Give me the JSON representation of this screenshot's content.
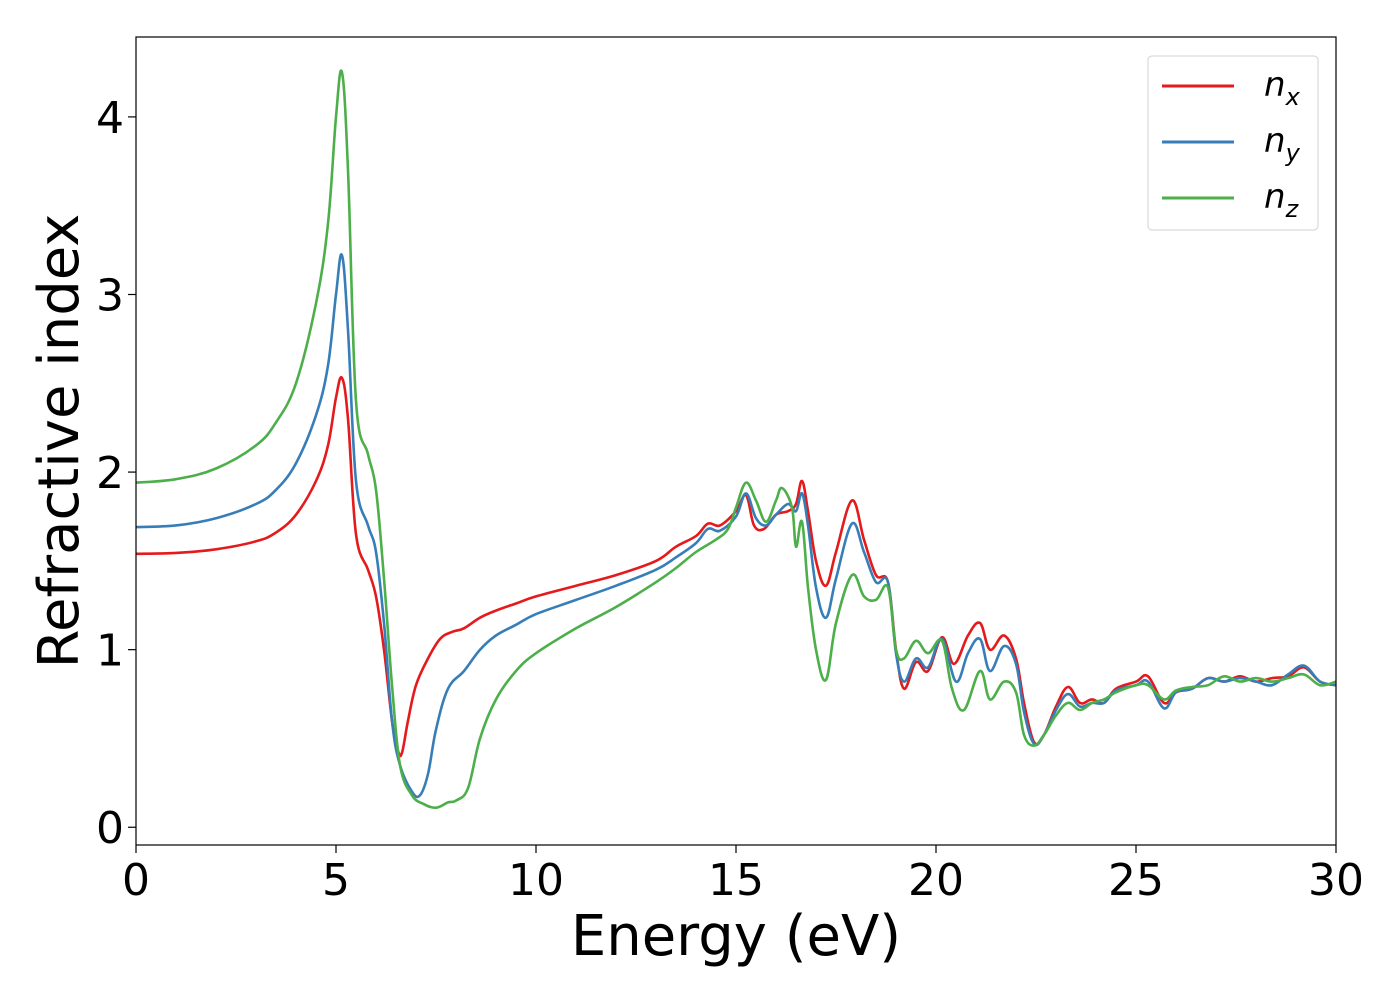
{
  "chart_data": {
    "type": "line",
    "xlabel": "Energy (eV)",
    "ylabel": "Refractive index",
    "xlim": [
      0,
      30
    ],
    "ylim": [
      -0.1,
      4.45
    ],
    "xticks": [
      0,
      5,
      10,
      15,
      20,
      25,
      30
    ],
    "xtick_labels": [
      "0",
      "5",
      "10",
      "15",
      "20",
      "25",
      "30"
    ],
    "yticks": [
      0,
      1,
      2,
      3,
      4
    ],
    "ytick_labels": [
      "0",
      "1",
      "2",
      "3",
      "4"
    ],
    "grid": false,
    "legend_position": "top-right",
    "series": [
      {
        "name": "n_x",
        "legend_base": "n",
        "legend_sub": "x",
        "color": "#e41a1c",
        "points": [
          [
            0,
            1.54
          ],
          [
            1,
            1.545
          ],
          [
            2,
            1.565
          ],
          [
            3,
            1.61
          ],
          [
            3.5,
            1.66
          ],
          [
            4,
            1.76
          ],
          [
            4.5,
            1.95
          ],
          [
            4.8,
            2.15
          ],
          [
            5.0,
            2.42
          ],
          [
            5.15,
            2.53
          ],
          [
            5.3,
            2.3
          ],
          [
            5.5,
            1.65
          ],
          [
            5.8,
            1.45
          ],
          [
            6.0,
            1.3
          ],
          [
            6.2,
            1.0
          ],
          [
            6.4,
            0.6
          ],
          [
            6.55,
            0.43
          ],
          [
            6.65,
            0.42
          ],
          [
            6.8,
            0.6
          ],
          [
            7.0,
            0.8
          ],
          [
            7.3,
            0.95
          ],
          [
            7.6,
            1.06
          ],
          [
            7.9,
            1.1
          ],
          [
            8.2,
            1.12
          ],
          [
            8.6,
            1.18
          ],
          [
            9,
            1.22
          ],
          [
            9.5,
            1.26
          ],
          [
            10,
            1.3
          ],
          [
            11,
            1.36
          ],
          [
            12,
            1.42
          ],
          [
            13,
            1.5
          ],
          [
            13.5,
            1.58
          ],
          [
            14,
            1.64
          ],
          [
            14.3,
            1.71
          ],
          [
            14.6,
            1.7
          ],
          [
            15.0,
            1.78
          ],
          [
            15.25,
            1.87
          ],
          [
            15.45,
            1.7
          ],
          [
            15.7,
            1.68
          ],
          [
            16.0,
            1.76
          ],
          [
            16.3,
            1.78
          ],
          [
            16.5,
            1.82
          ],
          [
            16.65,
            1.95
          ],
          [
            16.8,
            1.78
          ],
          [
            17.0,
            1.5
          ],
          [
            17.25,
            1.36
          ],
          [
            17.5,
            1.55
          ],
          [
            17.9,
            1.84
          ],
          [
            18.2,
            1.62
          ],
          [
            18.5,
            1.42
          ],
          [
            18.8,
            1.38
          ],
          [
            19.0,
            1.0
          ],
          [
            19.2,
            0.78
          ],
          [
            19.5,
            0.93
          ],
          [
            19.8,
            0.88
          ],
          [
            20.15,
            1.07
          ],
          [
            20.45,
            0.92
          ],
          [
            20.8,
            1.08
          ],
          [
            21.1,
            1.15
          ],
          [
            21.35,
            1.0
          ],
          [
            21.7,
            1.08
          ],
          [
            22.0,
            0.95
          ],
          [
            22.2,
            0.7
          ],
          [
            22.45,
            0.48
          ],
          [
            22.7,
            0.52
          ],
          [
            23.0,
            0.68
          ],
          [
            23.3,
            0.79
          ],
          [
            23.6,
            0.7
          ],
          [
            23.9,
            0.72
          ],
          [
            24.2,
            0.7
          ],
          [
            24.5,
            0.78
          ],
          [
            25.0,
            0.82
          ],
          [
            25.3,
            0.85
          ],
          [
            25.7,
            0.7
          ],
          [
            26.0,
            0.76
          ],
          [
            26.4,
            0.78
          ],
          [
            26.8,
            0.84
          ],
          [
            27.2,
            0.82
          ],
          [
            27.6,
            0.85
          ],
          [
            28.0,
            0.82
          ],
          [
            28.4,
            0.84
          ],
          [
            28.8,
            0.85
          ],
          [
            29.2,
            0.9
          ],
          [
            29.6,
            0.82
          ],
          [
            30,
            0.8
          ]
        ]
      },
      {
        "name": "n_y",
        "legend_base": "n",
        "legend_sub": "y",
        "color": "#377eb8",
        "points": [
          [
            0,
            1.69
          ],
          [
            1,
            1.7
          ],
          [
            2,
            1.74
          ],
          [
            3,
            1.82
          ],
          [
            3.5,
            1.9
          ],
          [
            4,
            2.05
          ],
          [
            4.5,
            2.32
          ],
          [
            4.8,
            2.6
          ],
          [
            5.0,
            3.0
          ],
          [
            5.15,
            3.22
          ],
          [
            5.3,
            2.8
          ],
          [
            5.5,
            1.95
          ],
          [
            5.8,
            1.7
          ],
          [
            6.0,
            1.55
          ],
          [
            6.2,
            1.15
          ],
          [
            6.4,
            0.6
          ],
          [
            6.6,
            0.35
          ],
          [
            6.9,
            0.2
          ],
          [
            7.1,
            0.18
          ],
          [
            7.3,
            0.3
          ],
          [
            7.5,
            0.55
          ],
          [
            7.8,
            0.78
          ],
          [
            8.2,
            0.88
          ],
          [
            8.6,
            1.0
          ],
          [
            9,
            1.08
          ],
          [
            9.5,
            1.14
          ],
          [
            10,
            1.2
          ],
          [
            11,
            1.28
          ],
          [
            12,
            1.36
          ],
          [
            13,
            1.45
          ],
          [
            13.5,
            1.52
          ],
          [
            14,
            1.6
          ],
          [
            14.3,
            1.68
          ],
          [
            14.6,
            1.67
          ],
          [
            15.0,
            1.75
          ],
          [
            15.25,
            1.88
          ],
          [
            15.5,
            1.74
          ],
          [
            15.75,
            1.7
          ],
          [
            16.0,
            1.76
          ],
          [
            16.3,
            1.82
          ],
          [
            16.5,
            1.78
          ],
          [
            16.65,
            1.88
          ],
          [
            16.8,
            1.7
          ],
          [
            17.0,
            1.35
          ],
          [
            17.25,
            1.18
          ],
          [
            17.5,
            1.4
          ],
          [
            17.9,
            1.71
          ],
          [
            18.2,
            1.55
          ],
          [
            18.5,
            1.38
          ],
          [
            18.8,
            1.38
          ],
          [
            19.0,
            0.98
          ],
          [
            19.2,
            0.82
          ],
          [
            19.5,
            0.95
          ],
          [
            19.8,
            0.9
          ],
          [
            20.15,
            1.06
          ],
          [
            20.5,
            0.82
          ],
          [
            20.8,
            0.98
          ],
          [
            21.1,
            1.06
          ],
          [
            21.35,
            0.88
          ],
          [
            21.7,
            1.02
          ],
          [
            22.0,
            0.92
          ],
          [
            22.2,
            0.65
          ],
          [
            22.45,
            0.47
          ],
          [
            22.7,
            0.52
          ],
          [
            23.0,
            0.66
          ],
          [
            23.3,
            0.75
          ],
          [
            23.6,
            0.68
          ],
          [
            23.9,
            0.7
          ],
          [
            24.2,
            0.7
          ],
          [
            24.5,
            0.77
          ],
          [
            25.0,
            0.8
          ],
          [
            25.3,
            0.82
          ],
          [
            25.7,
            0.67
          ],
          [
            26.0,
            0.76
          ],
          [
            26.4,
            0.78
          ],
          [
            26.8,
            0.84
          ],
          [
            27.2,
            0.82
          ],
          [
            27.6,
            0.84
          ],
          [
            28.0,
            0.82
          ],
          [
            28.4,
            0.8
          ],
          [
            28.8,
            0.86
          ],
          [
            29.2,
            0.91
          ],
          [
            29.6,
            0.82
          ],
          [
            30,
            0.8
          ]
        ]
      },
      {
        "name": "n_z",
        "legend_base": "n",
        "legend_sub": "z",
        "color": "#4daf4a",
        "points": [
          [
            0,
            1.94
          ],
          [
            1,
            1.96
          ],
          [
            2,
            2.02
          ],
          [
            3,
            2.15
          ],
          [
            3.5,
            2.28
          ],
          [
            4,
            2.5
          ],
          [
            4.5,
            2.95
          ],
          [
            4.8,
            3.4
          ],
          [
            5.0,
            4.0
          ],
          [
            5.15,
            4.25
          ],
          [
            5.3,
            3.7
          ],
          [
            5.5,
            2.4
          ],
          [
            5.8,
            2.1
          ],
          [
            6.0,
            1.9
          ],
          [
            6.2,
            1.4
          ],
          [
            6.4,
            0.8
          ],
          [
            6.6,
            0.35
          ],
          [
            6.9,
            0.18
          ],
          [
            7.2,
            0.13
          ],
          [
            7.5,
            0.11
          ],
          [
            7.8,
            0.14
          ],
          [
            8.0,
            0.15
          ],
          [
            8.3,
            0.22
          ],
          [
            8.6,
            0.5
          ],
          [
            9,
            0.72
          ],
          [
            9.5,
            0.88
          ],
          [
            10,
            0.98
          ],
          [
            11,
            1.12
          ],
          [
            12,
            1.24
          ],
          [
            13,
            1.38
          ],
          [
            13.5,
            1.46
          ],
          [
            14,
            1.55
          ],
          [
            14.5,
            1.62
          ],
          [
            14.8,
            1.68
          ],
          [
            15.0,
            1.8
          ],
          [
            15.25,
            1.94
          ],
          [
            15.5,
            1.84
          ],
          [
            15.75,
            1.72
          ],
          [
            16.0,
            1.84
          ],
          [
            16.15,
            1.91
          ],
          [
            16.4,
            1.8
          ],
          [
            16.5,
            1.58
          ],
          [
            16.65,
            1.72
          ],
          [
            16.8,
            1.35
          ],
          [
            17.0,
            1.0
          ],
          [
            17.25,
            0.83
          ],
          [
            17.5,
            1.15
          ],
          [
            17.9,
            1.42
          ],
          [
            18.2,
            1.3
          ],
          [
            18.5,
            1.28
          ],
          [
            18.8,
            1.35
          ],
          [
            19.0,
            1.0
          ],
          [
            19.2,
            0.95
          ],
          [
            19.5,
            1.05
          ],
          [
            19.8,
            0.98
          ],
          [
            20.15,
            1.05
          ],
          [
            20.4,
            0.78
          ],
          [
            20.7,
            0.66
          ],
          [
            21.1,
            0.88
          ],
          [
            21.35,
            0.72
          ],
          [
            21.7,
            0.82
          ],
          [
            22.0,
            0.76
          ],
          [
            22.2,
            0.52
          ],
          [
            22.45,
            0.46
          ],
          [
            22.7,
            0.52
          ],
          [
            23.0,
            0.63
          ],
          [
            23.3,
            0.7
          ],
          [
            23.6,
            0.66
          ],
          [
            23.9,
            0.7
          ],
          [
            24.2,
            0.72
          ],
          [
            24.5,
            0.76
          ],
          [
            25.0,
            0.8
          ],
          [
            25.3,
            0.8
          ],
          [
            25.7,
            0.72
          ],
          [
            26.0,
            0.77
          ],
          [
            26.4,
            0.79
          ],
          [
            26.8,
            0.8
          ],
          [
            27.2,
            0.85
          ],
          [
            27.6,
            0.82
          ],
          [
            28.0,
            0.84
          ],
          [
            28.4,
            0.82
          ],
          [
            28.8,
            0.84
          ],
          [
            29.2,
            0.86
          ],
          [
            29.6,
            0.8
          ],
          [
            30,
            0.82
          ]
        ]
      }
    ]
  }
}
